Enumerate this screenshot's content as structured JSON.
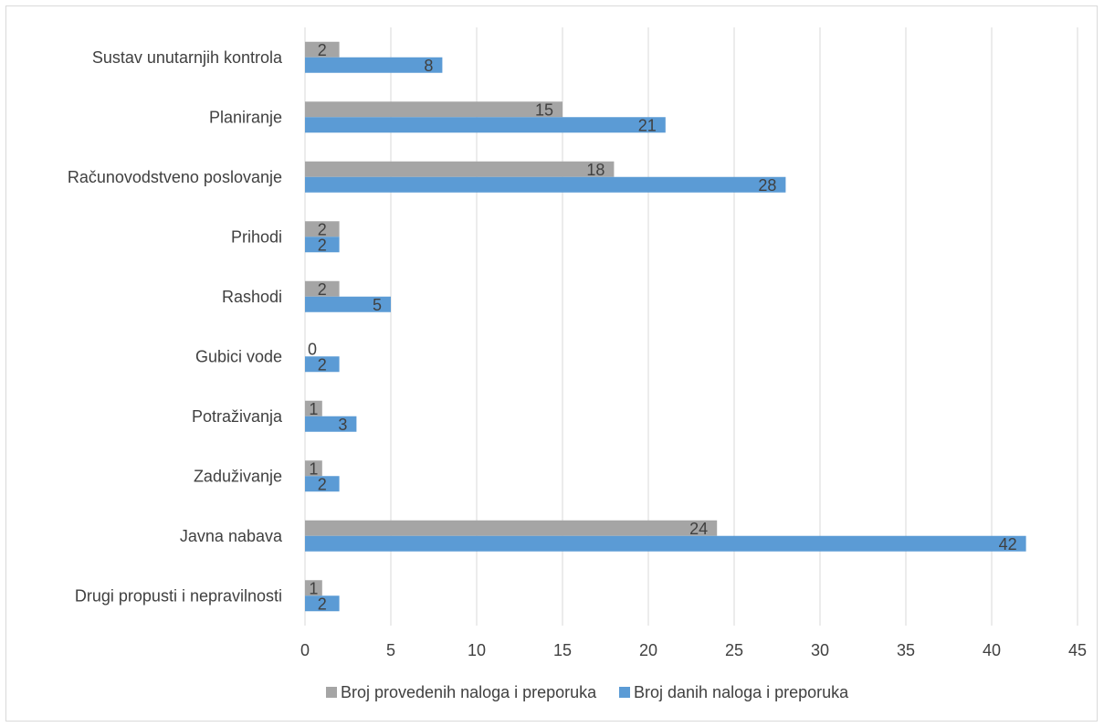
{
  "chart_data": {
    "type": "bar",
    "orientation": "horizontal",
    "title": "",
    "xlabel": "",
    "ylabel": "",
    "xlim": [
      0,
      45
    ],
    "x_ticks": [
      0,
      5,
      10,
      15,
      20,
      25,
      30,
      35,
      40,
      45
    ],
    "grid": true,
    "legend_position": "bottom",
    "categories": [
      "Sustav unutarnjih kontrola",
      "Planiranje",
      "Računovodstveno poslovanje",
      "Prihodi",
      "Rashodi",
      "Gubici vode",
      "Potraživanja",
      "Zaduživanje",
      "Javna nabava",
      "Drugi propusti i nepravilnosti"
    ],
    "series": [
      {
        "name": "Broj provedenih naloga i preporuka",
        "color": "#a5a5a5",
        "values": [
          2,
          15,
          18,
          2,
          2,
          0,
          1,
          1,
          24,
          1
        ]
      },
      {
        "name": "Broj danih naloga i preporuka",
        "color": "#5b9bd5",
        "values": [
          8,
          21,
          28,
          2,
          5,
          2,
          3,
          2,
          42,
          2
        ]
      }
    ]
  }
}
